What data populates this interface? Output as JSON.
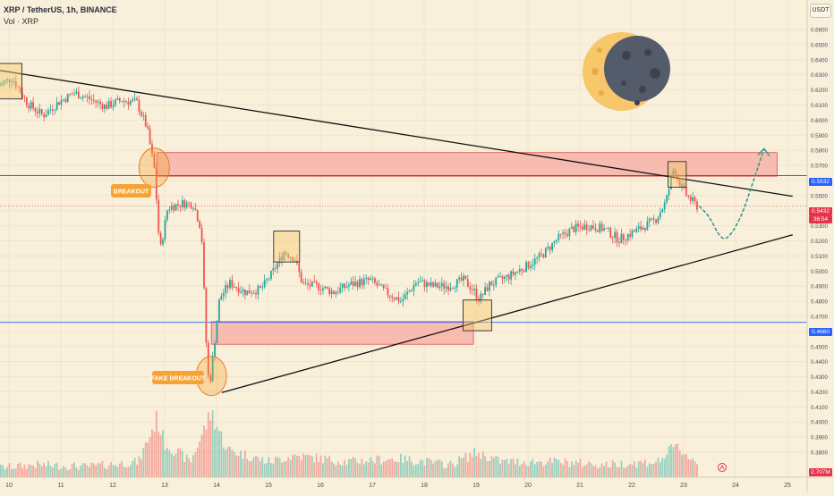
{
  "header": {
    "symbol_line": "XRP / TetherUS, 1h, BINANCE",
    "volume_line": "Vol · XRP"
  },
  "currency_button": "USDT",
  "labels": {
    "breakout": "BREAKOUT",
    "fake_breakout": "FAKE BREAKOUT"
  },
  "price_tags": {
    "upper_zone": "0.5632",
    "current_price": "0.5432",
    "countdown": "36:54",
    "lower_level": "0.4660",
    "volume": "2.707M"
  },
  "colors": {
    "background": "#f9f0dc",
    "bull": "#26a69a",
    "bear": "#ef5350",
    "zone_fill": "#f7a9a0",
    "zone_border": "#e05050",
    "label_bg": "#f7a334",
    "trendline": "#111111",
    "projection": "#3a9a8f",
    "current_tag": "#e5334b",
    "blue_level": "#2962ff",
    "purple_level": "#7b1fa2"
  },
  "icons": {
    "moon": "crescent-moon-icon",
    "projection_arrow": "arrow-up-icon",
    "tv_logo": "tradingview-logo-icon"
  },
  "chart_data": {
    "type": "candlestick",
    "title": "XRP / TetherUS, 1h, BINANCE",
    "x_ticks": [
      "10",
      "11",
      "12",
      "13",
      "14",
      "15",
      "16",
      "17",
      "18",
      "19",
      "20",
      "21",
      "22",
      "23",
      "24",
      "25"
    ],
    "y_ticks": [
      "0.6600",
      "0.6500",
      "0.6400",
      "0.6300",
      "0.6200",
      "0.6100",
      "0.6000",
      "0.5900",
      "0.5800",
      "0.5700",
      "0.5600",
      "0.5500",
      "0.5400",
      "0.5300",
      "0.5200",
      "0.5100",
      "0.5000",
      "0.4900",
      "0.4800",
      "0.4700",
      "0.4600",
      "0.4500",
      "0.4400",
      "0.4300",
      "0.4200",
      "0.4100",
      "0.4000",
      "0.3900",
      "0.3800"
    ],
    "ylim": [
      0.375,
      0.672
    ],
    "xlim": [
      9.8,
      25.1
    ],
    "price_path": [
      [
        9.8,
        0.622
      ],
      [
        10.1,
        0.628
      ],
      [
        10.4,
        0.611
      ],
      [
        10.7,
        0.603
      ],
      [
        11.0,
        0.612
      ],
      [
        11.3,
        0.618
      ],
      [
        11.6,
        0.614
      ],
      [
        11.9,
        0.609
      ],
      [
        12.2,
        0.613
      ],
      [
        12.5,
        0.612
      ],
      [
        12.7,
        0.595
      ],
      [
        12.85,
        0.566
      ],
      [
        12.95,
        0.512
      ],
      [
        13.1,
        0.542
      ],
      [
        13.4,
        0.545
      ],
      [
        13.6,
        0.544
      ],
      [
        13.75,
        0.527
      ],
      [
        13.85,
        0.446
      ],
      [
        13.9,
        0.422
      ],
      [
        14.1,
        0.482
      ],
      [
        14.3,
        0.492
      ],
      [
        14.6,
        0.486
      ],
      [
        14.9,
        0.488
      ],
      [
        15.1,
        0.498
      ],
      [
        15.35,
        0.513
      ],
      [
        15.55,
        0.508
      ],
      [
        15.7,
        0.491
      ],
      [
        16.0,
        0.49
      ],
      [
        16.3,
        0.486
      ],
      [
        16.6,
        0.491
      ],
      [
        17.0,
        0.494
      ],
      [
        17.3,
        0.486
      ],
      [
        17.6,
        0.48
      ],
      [
        17.9,
        0.493
      ],
      [
        18.2,
        0.49
      ],
      [
        18.5,
        0.49
      ],
      [
        18.8,
        0.494
      ],
      [
        19.0,
        0.487
      ],
      [
        19.1,
        0.481
      ],
      [
        19.3,
        0.491
      ],
      [
        19.7,
        0.497
      ],
      [
        20.0,
        0.503
      ],
      [
        20.3,
        0.51
      ],
      [
        20.6,
        0.521
      ],
      [
        20.9,
        0.528
      ],
      [
        21.2,
        0.53
      ],
      [
        21.5,
        0.528
      ],
      [
        21.8,
        0.521
      ],
      [
        22.2,
        0.528
      ],
      [
        22.5,
        0.534
      ],
      [
        22.7,
        0.546
      ],
      [
        22.85,
        0.568
      ],
      [
        22.95,
        0.559
      ],
      [
        23.1,
        0.55
      ],
      [
        23.3,
        0.543
      ]
    ],
    "volume_path": [
      [
        9.8,
        0.1
      ],
      [
        10.5,
        0.15
      ],
      [
        11.5,
        0.12
      ],
      [
        12.5,
        0.2
      ],
      [
        12.85,
        0.9
      ],
      [
        13.0,
        0.5
      ],
      [
        13.5,
        0.2
      ],
      [
        13.9,
        1.0
      ],
      [
        14.2,
        0.4
      ],
      [
        15.0,
        0.2
      ],
      [
        15.5,
        0.3
      ],
      [
        16.5,
        0.2
      ],
      [
        17.5,
        0.25
      ],
      [
        18.5,
        0.15
      ],
      [
        19.0,
        0.35
      ],
      [
        19.5,
        0.2
      ],
      [
        20.5,
        0.2
      ],
      [
        21.5,
        0.15
      ],
      [
        22.5,
        0.2
      ],
      [
        22.85,
        0.45
      ],
      [
        23.3,
        0.15
      ]
    ],
    "zones": [
      {
        "name": "upper-resistance-zone",
        "x1": 12.85,
        "x2": 24.8,
        "y1": 0.5628,
        "y2": 0.5785
      },
      {
        "name": "lower-support-zone",
        "x1": 13.9,
        "x2": 18.95,
        "y1": 0.4515,
        "y2": 0.4665
      }
    ],
    "levels": [
      {
        "name": "purple-level",
        "y": 0.5632,
        "color": "#7b1fa2"
      },
      {
        "name": "blue-level",
        "y": 0.466,
        "color": "#2962ff"
      }
    ],
    "trendlines": [
      {
        "name": "descending-trendline",
        "x1": 9.8,
        "y1": 0.633,
        "x2": 25.1,
        "y2": 0.5495
      },
      {
        "name": "ascending-trendline",
        "x1": 14.1,
        "y1": 0.4195,
        "x2": 25.1,
        "y2": 0.524
      }
    ],
    "boxes": [
      {
        "name": "top-left-box",
        "x1": 9.8,
        "x2": 10.25,
        "y1": 0.614,
        "y2": 0.6375
      },
      {
        "name": "mid-box",
        "x1": 15.1,
        "x2": 15.6,
        "y1": 0.506,
        "y2": 0.5265
      },
      {
        "name": "retest-box",
        "x1": 18.75,
        "x2": 19.3,
        "y1": 0.4605,
        "y2": 0.4808
      },
      {
        "name": "top-right-box",
        "x1": 22.7,
        "x2": 23.05,
        "y1": 0.5555,
        "y2": 0.5725
      }
    ],
    "circles": [
      {
        "name": "breakout-circle",
        "x": 12.8,
        "y": 0.5685
      },
      {
        "name": "fake-breakout-circle",
        "x": 13.9,
        "y": 0.4305
      }
    ],
    "projection": [
      [
        23.3,
        0.543
      ],
      [
        23.5,
        0.536
      ],
      [
        23.7,
        0.522
      ],
      [
        23.85,
        0.521
      ],
      [
        24.1,
        0.535
      ],
      [
        24.3,
        0.555
      ],
      [
        24.5,
        0.576
      ],
      [
        24.55,
        0.581
      ]
    ]
  }
}
